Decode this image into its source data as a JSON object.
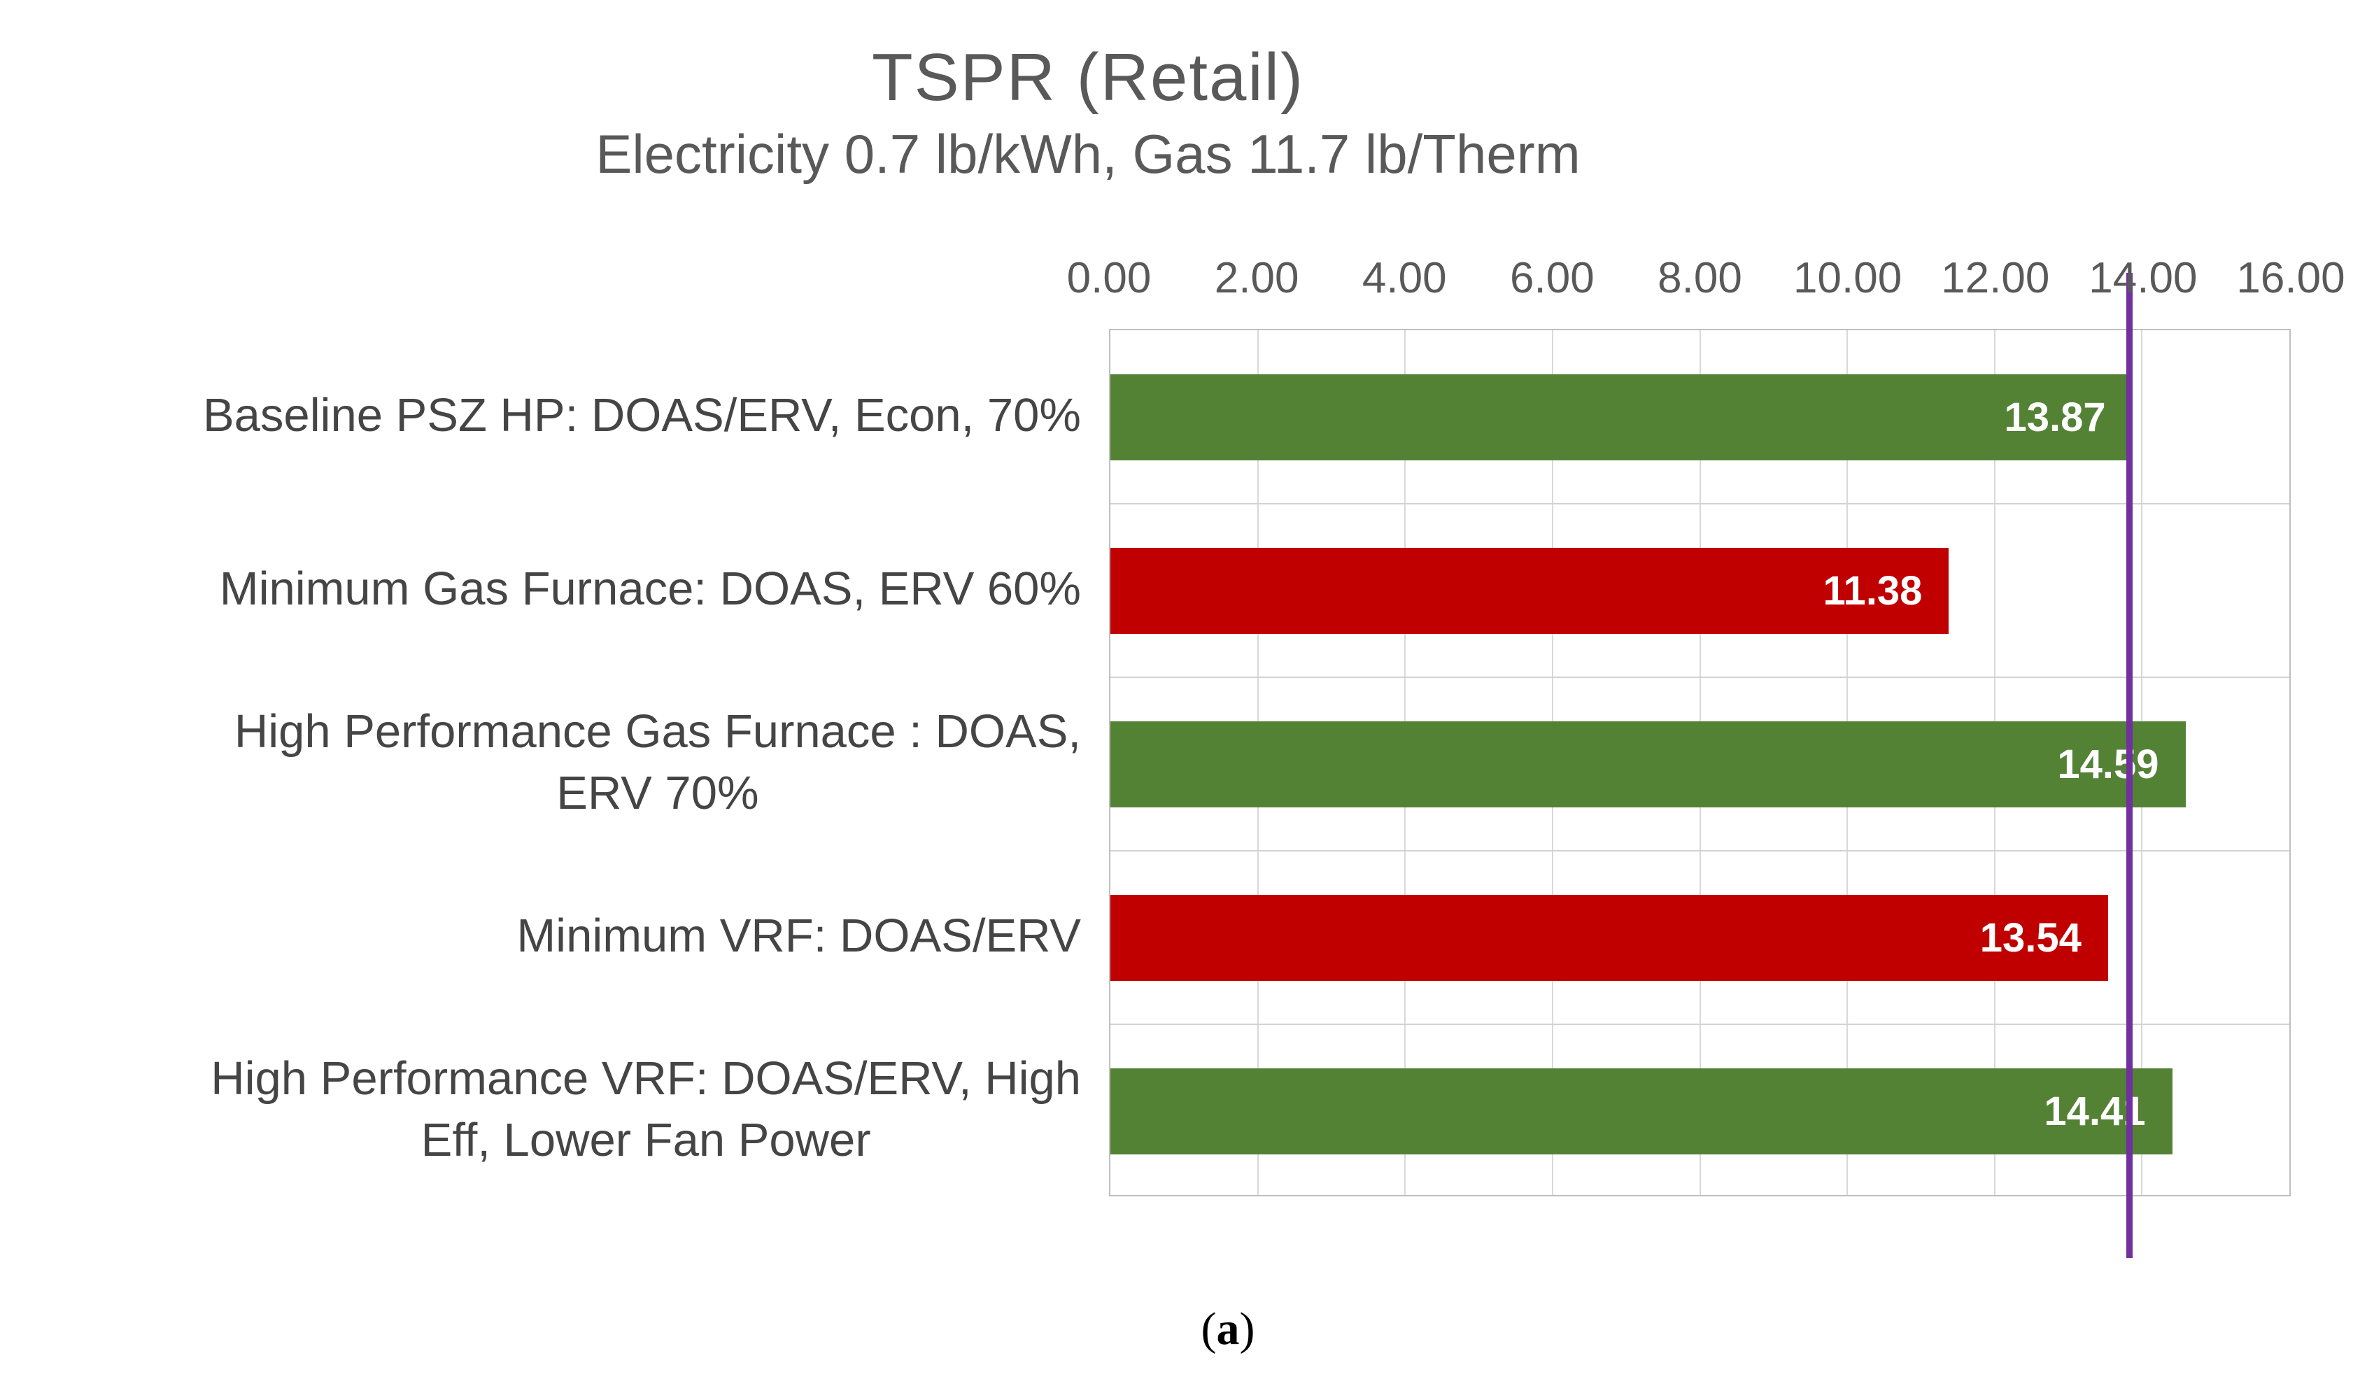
{
  "title": "TSPR (Retail)",
  "subtitle": "Electricity 0.7 lb/kWh, Gas 11.7 lb/Therm",
  "caption": {
    "open": "(",
    "letter": "a",
    "close": ")"
  },
  "chart_data": {
    "type": "bar",
    "orientation": "horizontal",
    "title": "TSPR (Retail)",
    "subtitle": "Electricity 0.7 lb/kWh, Gas 11.7 lb/Therm",
    "categories": [
      "Baseline PSZ HP: DOAS/ERV, Econ, 70%",
      "Minimum Gas Furnace: DOAS, ERV 60%",
      "High Performance Gas Furnace : DOAS, ERV 70%",
      "Minimum VRF: DOAS/ERV",
      "High Performance VRF: DOAS/ERV, High Eff, Lower Fan Power"
    ],
    "category_display_lines": [
      [
        "Baseline PSZ HP: DOAS/ERV, Econ, 70%"
      ],
      [
        "Minimum Gas Furnace: DOAS, ERV 60%"
      ],
      [
        "High Performance Gas Furnace : DOAS,",
        "ERV 70%"
      ],
      [
        "Minimum VRF: DOAS/ERV"
      ],
      [
        "High Performance VRF: DOAS/ERV, High",
        "Eff, Lower Fan Power"
      ]
    ],
    "values": [
      13.87,
      11.38,
      14.59,
      13.54,
      14.41
    ],
    "value_labels": [
      "13.87",
      "11.38",
      "14.59",
      "13.54",
      "14.41"
    ],
    "bar_colors": [
      "#548235",
      "#c00000",
      "#548235",
      "#c00000",
      "#548235"
    ],
    "xlim": [
      0,
      16
    ],
    "xtick_values": [
      0,
      2,
      4,
      6,
      8,
      10,
      12,
      14,
      16
    ],
    "xtick_labels": [
      "0.00",
      "2.00",
      "4.00",
      "6.00",
      "8.00",
      "10.00",
      "12.00",
      "14.00",
      "16.00"
    ],
    "axis_position": "top",
    "grid": true,
    "legend": "none",
    "reference_line": {
      "value": 13.87,
      "color": "#7030a0",
      "label": "baseline-marker"
    },
    "colors": {
      "green_bar": "#548235",
      "red_bar": "#c00000",
      "reference_line": "#7030a0",
      "axis_text": "#595959",
      "category_text": "#454545",
      "value_text": "#ffffff",
      "gridline": "#d9d9d9",
      "plot_border": "#bfbfbf"
    }
  }
}
